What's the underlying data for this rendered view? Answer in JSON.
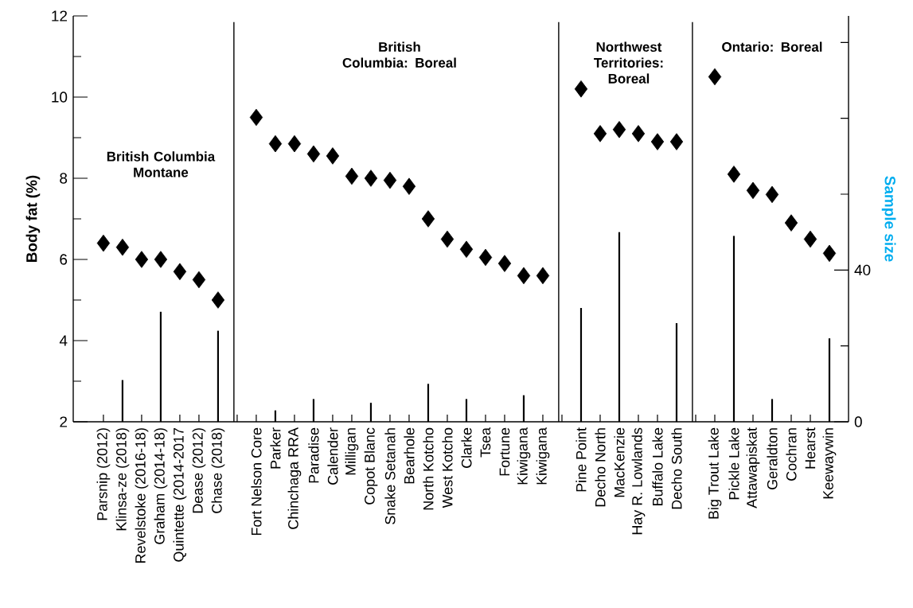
{
  "chart_data": {
    "type": "scatter",
    "ylabel": "Body fat (%)",
    "y2label": "Sample size",
    "annotations": [
      "British Columbia Montane",
      "British Columbia: Boreal",
      "Northwest Territories: Boreal",
      "Ontario: Boreal"
    ],
    "categories": [
      "Parsnip (2012)",
      "Klinsa-ze (2018)",
      "Revelstoke (2016-18)",
      "Graham (2014-18)",
      "Quintette (2014-2017",
      "Dease (2012)",
      "Chase (2018)",
      null,
      "Fort Nelson Core",
      "Parker",
      "Chinchaga RRA",
      "Paradise",
      "Calender",
      "Milligan",
      "Copot Blanc",
      "Snake Setanah",
      "Bearhole",
      "North Kotcho",
      "West Kotcho",
      "Clarke",
      "Tsea",
      "Fortune",
      "Kiwigana",
      "Kiwigana",
      null,
      "Pine Point",
      "Decho North",
      "MacKenzie",
      "Hay R. Lowlands",
      "Buffalo Lake",
      "Decho South",
      null,
      "Big Trout Lake",
      "Pickle Lake",
      "Attawapiskat",
      "Geraldton",
      "Cochran",
      "Hearst",
      "Keewaywin"
    ],
    "series": [
      {
        "color": "#000000",
        "values": [
          6.4,
          6.3,
          6.0,
          6.0,
          5.7,
          5.5,
          5.0,
          null,
          9.5,
          8.85,
          8.85,
          8.6,
          8.55,
          8.05,
          8.0,
          7.95,
          7.8,
          7.0,
          6.5,
          6.25,
          6.05,
          5.9,
          5.6,
          5.6,
          null,
          10.2,
          9.1,
          9.2,
          9.1,
          8.9,
          8.9,
          null,
          10.5,
          8.1,
          7.7,
          7.6,
          6.9,
          6.5,
          6.15
        ]
      },
      {
        "type": "bar",
        "axis": "y2",
        "color": "#000000",
        "values": [
          null,
          11,
          null,
          29,
          null,
          null,
          24,
          null,
          null,
          3,
          null,
          6,
          null,
          null,
          5,
          null,
          null,
          10,
          null,
          6,
          null,
          null,
          7,
          null,
          null,
          30,
          null,
          50,
          null,
          null,
          26,
          null,
          null,
          49,
          null,
          6,
          null,
          null,
          22
        ]
      }
    ],
    "marker": "diamond",
    "ylim": [
      2,
      12
    ],
    "yticks": [
      2,
      {
        "value": 3,
        "label": null
      },
      4,
      {
        "value": 5,
        "label": null
      },
      6,
      {
        "value": 7,
        "label": null
      },
      8,
      {
        "value": 9,
        "label": null
      },
      10,
      {
        "value": 11,
        "label": null
      },
      12
    ],
    "y2lim": [
      0,
      107
    ],
    "y2ticks": [
      0,
      {
        "value": 20,
        "label": null
      },
      40,
      {
        "value": 60,
        "label": null
      },
      {
        "value": 80,
        "label": null
      },
      {
        "value": 100,
        "label": null
      }
    ]
  }
}
